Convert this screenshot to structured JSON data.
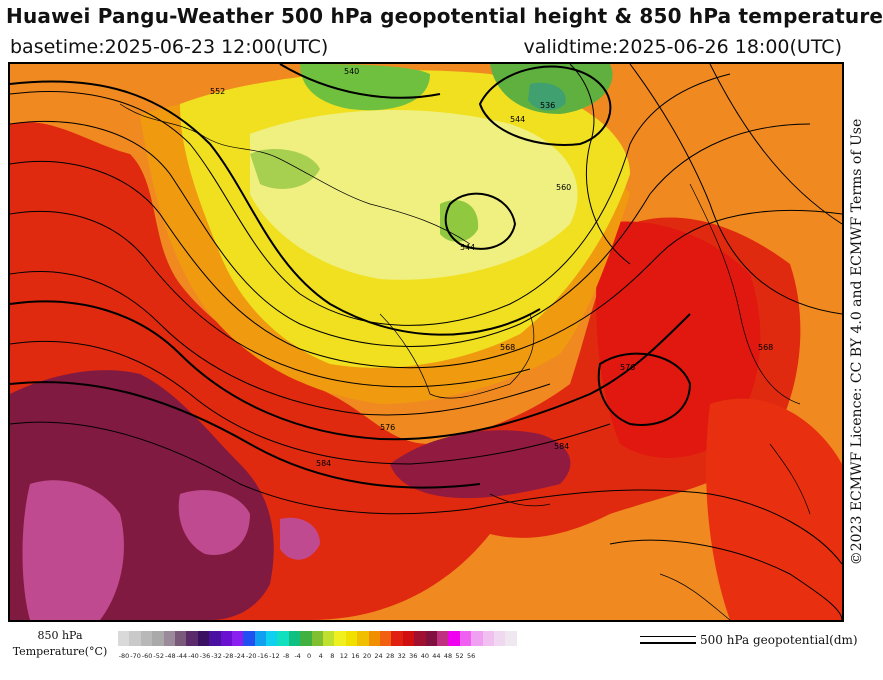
{
  "header": {
    "title": "Huawei Pangu-Weather 500 hPa geopotential height & 850 hPa temperature",
    "basetime": "basetime:2025-06-23 12:00(UTC)",
    "validtime": "validtime:2025-06-26 18:00(UTC)"
  },
  "licence": "©2023 ECMWF Licence: CC BY 4.0 and ECMWF Terms of Use",
  "colorbar": {
    "label_line1": "850 hPa",
    "label_line2": "Temperature(°C)",
    "ticks": [
      "-80",
      "-70",
      "-60",
      "-52",
      "-48",
      "-44",
      "-40",
      "-36",
      "-32",
      "-28",
      "-24",
      "-20",
      "-16",
      "-12",
      "-8",
      "-4",
      "0",
      "4",
      "8",
      "12",
      "16",
      "20",
      "24",
      "28",
      "32",
      "36",
      "40",
      "44",
      "48",
      "52",
      "56"
    ],
    "colors": [
      "#d9d9d9",
      "#c9c9c9",
      "#b8b8b8",
      "#a9a9a9",
      "#9a8a9a",
      "#7a5a7a",
      "#5a2a6a",
      "#3a1060",
      "#4a10a0",
      "#6a10d0",
      "#8a20f0",
      "#2050f0",
      "#10a0f0",
      "#10d0f0",
      "#10e0c0",
      "#10c080",
      "#40b040",
      "#80c030",
      "#c0e030",
      "#f0f020",
      "#f0e000",
      "#f0c000",
      "#f09000",
      "#f06010",
      "#e02010",
      "#d01010",
      "#a01030",
      "#801040",
      "#c03080",
      "#f000f0",
      "#f060f0",
      "#f0a0f0",
      "#f0c0f0",
      "#f0d8f0",
      "#f0e8f0"
    ]
  },
  "legend": {
    "contour_label": "500 hPa geopotential(dm)"
  },
  "map": {
    "contour_labels": [
      "540",
      "544",
      "552",
      "536",
      "544",
      "560",
      "584",
      "568",
      "576",
      "584",
      "576",
      "568"
    ]
  }
}
